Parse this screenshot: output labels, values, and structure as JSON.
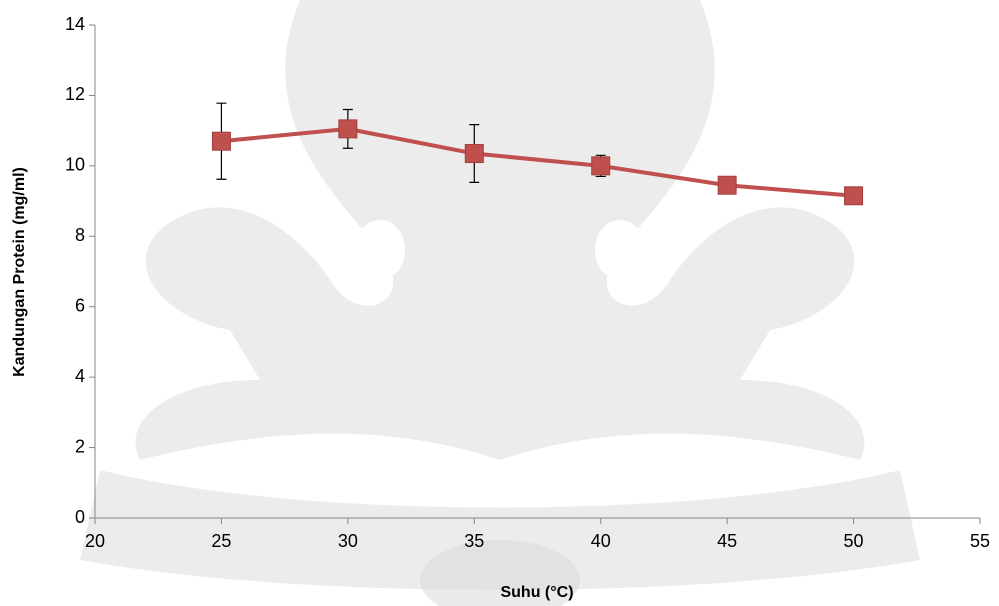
{
  "chart_data": {
    "type": "line",
    "x_label": "Suhu (°C)",
    "y_label": "Kandungan Protein (mg/ml)",
    "x": [
      25,
      30,
      35,
      40,
      45,
      50
    ],
    "series": [
      {
        "color": "#c0504d",
        "values": [
          10.7,
          11.05,
          10.35,
          10.0,
          9.45,
          9.15
        ],
        "errors": [
          1.08,
          0.55,
          0.82,
          0.3,
          null,
          null
        ]
      }
    ],
    "xlim": [
      20,
      55
    ],
    "xticks": [
      20,
      25,
      30,
      35,
      40,
      45,
      50,
      55
    ],
    "ylim": [
      0,
      14
    ],
    "yticks": [
      0,
      2,
      4,
      6,
      8,
      10,
      12,
      14
    ],
    "grid": false
  }
}
